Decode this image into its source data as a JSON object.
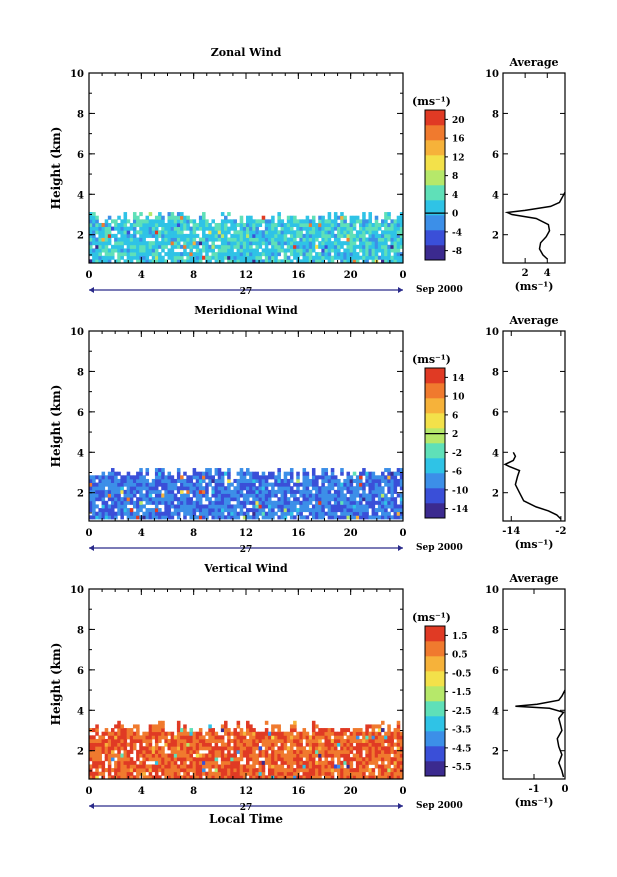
{
  "figure": {
    "date_label": "Sep 2000",
    "day_label": "27",
    "xlabel_bottom": "Local Time"
  },
  "colorscale": [
    "#3b2a8f",
    "#3a4fd8",
    "#3c8fe8",
    "#2fc3e6",
    "#5fe0b8",
    "#b6e86a",
    "#f3e14a",
    "#f6b23a",
    "#f07a2e",
    "#e03a24"
  ],
  "chart_data": [
    {
      "type": "heatmap",
      "name": "zonal",
      "title": "Zonal Wind",
      "ylabel": "Height (km)",
      "xlabel": "",
      "xlim": [
        0,
        24
      ],
      "ylim": [
        0.6,
        10
      ],
      "xticks": [
        "0",
        "4",
        "8",
        "12",
        "16",
        "20",
        "0"
      ],
      "yticks": [
        "2",
        "4",
        "6",
        "8",
        "10"
      ],
      "data_height_range_km": [
        0.6,
        3.1
      ],
      "value_range": [
        -8,
        22
      ],
      "typical_value": 3,
      "colorbar": {
        "unit": "(ms⁻¹)",
        "ticks": [
          "20",
          "16",
          "12",
          "8",
          "4",
          "0",
          "-4",
          "-8"
        ],
        "zero_tick": "0"
      },
      "average": {
        "title": "Average",
        "xlabel": "(ms⁻¹)",
        "xticks": [
          "2",
          "4"
        ],
        "xlim": [
          0,
          5.6
        ],
        "ylim": [
          0.6,
          10
        ],
        "yticks": [
          "2",
          "4",
          "6",
          "8",
          "10"
        ],
        "profile": [
          [
            4.0,
            0.8
          ],
          [
            3.6,
            1.0
          ],
          [
            3.3,
            1.3
          ],
          [
            3.4,
            1.6
          ],
          [
            3.9,
            1.9
          ],
          [
            4.2,
            2.2
          ],
          [
            4.1,
            2.5
          ],
          [
            3.0,
            2.8
          ],
          [
            0.8,
            3.0
          ],
          [
            0.4,
            3.1
          ],
          [
            2.0,
            3.2
          ],
          [
            4.3,
            3.4
          ],
          [
            5.1,
            3.6
          ],
          [
            5.4,
            3.9
          ],
          [
            5.6,
            4.1
          ]
        ]
      }
    },
    {
      "type": "heatmap",
      "name": "meridional",
      "title": "Meridional Wind",
      "ylabel": "Height (km)",
      "xlabel": "",
      "xlim": [
        0,
        24
      ],
      "ylim": [
        0.6,
        10
      ],
      "xticks": [
        "0",
        "4",
        "8",
        "12",
        "16",
        "20",
        "0"
      ],
      "yticks": [
        "2",
        "4",
        "6",
        "8",
        "10"
      ],
      "data_height_range_km": [
        0.7,
        3.2
      ],
      "value_range": [
        -14,
        14
      ],
      "typical_value": -8,
      "colorbar": {
        "unit": "(ms⁻¹)",
        "ticks": [
          "14",
          "10",
          "6",
          "2",
          "-2",
          "-6",
          "-10",
          "-14"
        ],
        "zero_tick": "2"
      },
      "average": {
        "title": "Average",
        "xlabel": "(ms⁻¹)",
        "xticks": [
          "-14",
          "-2"
        ],
        "xlim": [
          -16,
          -1
        ],
        "ylim": [
          0.6,
          10
        ],
        "yticks": [
          "2",
          "4",
          "6",
          "8",
          "10"
        ],
        "profile": [
          [
            -2,
            0.7
          ],
          [
            -3,
            0.9
          ],
          [
            -5,
            1.1
          ],
          [
            -8,
            1.3
          ],
          [
            -11,
            1.6
          ],
          [
            -12,
            2.0
          ],
          [
            -13,
            2.4
          ],
          [
            -12.5,
            2.8
          ],
          [
            -12,
            3.1
          ],
          [
            -14.5,
            3.3
          ],
          [
            -15.5,
            3.4
          ],
          [
            -13.5,
            3.6
          ],
          [
            -13,
            3.8
          ],
          [
            -13.5,
            4.0
          ]
        ]
      }
    },
    {
      "type": "heatmap",
      "name": "vertical",
      "title": "Vertical Wind",
      "ylabel": "Height (km)",
      "xlabel": "Local Time",
      "xlim": [
        0,
        24
      ],
      "ylim": [
        0.6,
        10
      ],
      "xticks": [
        "0",
        "4",
        "8",
        "12",
        "16",
        "20",
        "0"
      ],
      "yticks": [
        "2",
        "4",
        "6",
        "8",
        "10"
      ],
      "data_height_range_km": [
        0.6,
        3.4
      ],
      "value_range": [
        -6.5,
        1.5
      ],
      "typical_value": 0.6,
      "colorbar": {
        "unit": "(ms⁻¹)",
        "ticks": [
          "1.5",
          "0.5",
          "-0.5",
          "-1.5",
          "-2.5",
          "-3.5",
          "-4.5",
          "-5.5"
        ],
        "zero_tick": ""
      },
      "average": {
        "title": "Average",
        "xlabel": "(ms⁻¹)",
        "xticks": [
          "-1",
          "0"
        ],
        "xlim": [
          -2,
          0
        ],
        "ylim": [
          0.6,
          10
        ],
        "yticks": [
          "2",
          "4",
          "6",
          "8",
          "10"
        ],
        "profile": [
          [
            -0.05,
            0.7
          ],
          [
            -0.1,
            1.0
          ],
          [
            -0.2,
            1.4
          ],
          [
            -0.1,
            1.8
          ],
          [
            -0.2,
            2.2
          ],
          [
            -0.25,
            2.6
          ],
          [
            -0.1,
            3.0
          ],
          [
            -0.15,
            3.3
          ],
          [
            -0.2,
            3.6
          ],
          [
            -0.05,
            3.9
          ],
          [
            -0.5,
            4.1
          ],
          [
            -1.6,
            4.2
          ],
          [
            -0.9,
            4.3
          ],
          [
            -0.2,
            4.5
          ],
          [
            -0.1,
            4.7
          ],
          [
            0,
            5.0
          ]
        ]
      }
    }
  ]
}
